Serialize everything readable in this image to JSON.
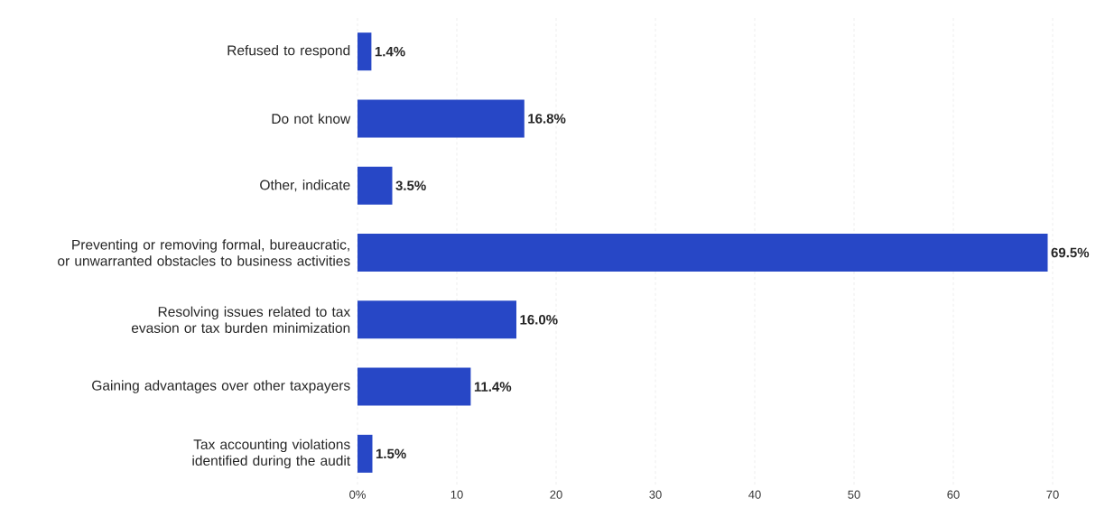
{
  "chart_data": {
    "type": "bar",
    "orientation": "horizontal",
    "color": "#2747c6",
    "categories": [
      "Refused to respond",
      "Do not know",
      "Other, indicate",
      "Preventing or removing formal, bureaucratic, or unwarranted obstacles to business activities",
      "Resolving issues related to tax evasion or tax burden minimization",
      "Gaining advantages over other taxpayers",
      "Tax accounting violations identified during the audit"
    ],
    "values": [
      1.4,
      16.8,
      3.5,
      69.5,
      16.0,
      11.4,
      1.5
    ],
    "value_labels": [
      "1.4%",
      "16.8%",
      "3.5%",
      "69.5%",
      "16.0%",
      "11.4%",
      "1.5%"
    ],
    "xlim": [
      0,
      70
    ],
    "xticks": [
      {
        "value": 0,
        "label": "0%"
      },
      10,
      20,
      30,
      40,
      50,
      60,
      70
    ],
    "grid": "x"
  }
}
